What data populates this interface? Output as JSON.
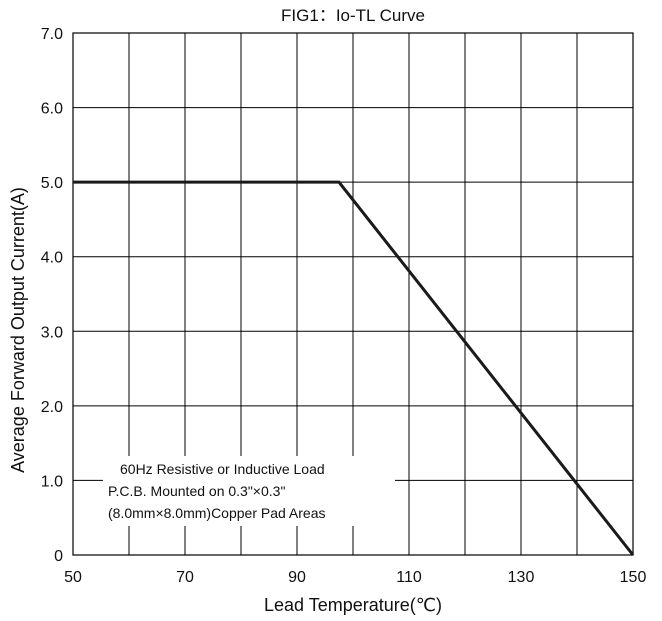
{
  "chart_data": {
    "type": "line",
    "title": "FIG1：Io-TL Curve",
    "xlabel": "Lead Temperature(℃)",
    "ylabel": "Average Forward Output Current(A)",
    "xlim": [
      50,
      150
    ],
    "ylim": [
      0,
      7
    ],
    "x_ticks": [
      50,
      70,
      90,
      110,
      130,
      150
    ],
    "x_tick_labels": [
      "50",
      "70",
      "90",
      "110",
      "130",
      "150"
    ],
    "y_ticks": [
      0,
      1,
      2,
      3,
      4,
      5,
      6,
      7
    ],
    "y_tick_labels": [
      "0",
      "1.0",
      "2.0",
      "3.0",
      "4.0",
      "5.0",
      "6.0",
      "7.0"
    ],
    "x_grid": [
      50,
      60,
      70,
      80,
      90,
      100,
      110,
      120,
      130,
      140,
      150
    ],
    "grid": true,
    "series": [
      {
        "x": [
          50,
          97.5,
          150
        ],
        "y": [
          5.0,
          5.0,
          0
        ]
      }
    ],
    "annotation": [
      "60Hz Resistive or Inductive Load",
      "P.C.B. Mounted on 0.3\"×0.3\"",
      "(8.0mm×8.0mm)Copper Pad Areas"
    ],
    "colors": {
      "line": "#1a1a1a",
      "grid": "#000000"
    }
  }
}
